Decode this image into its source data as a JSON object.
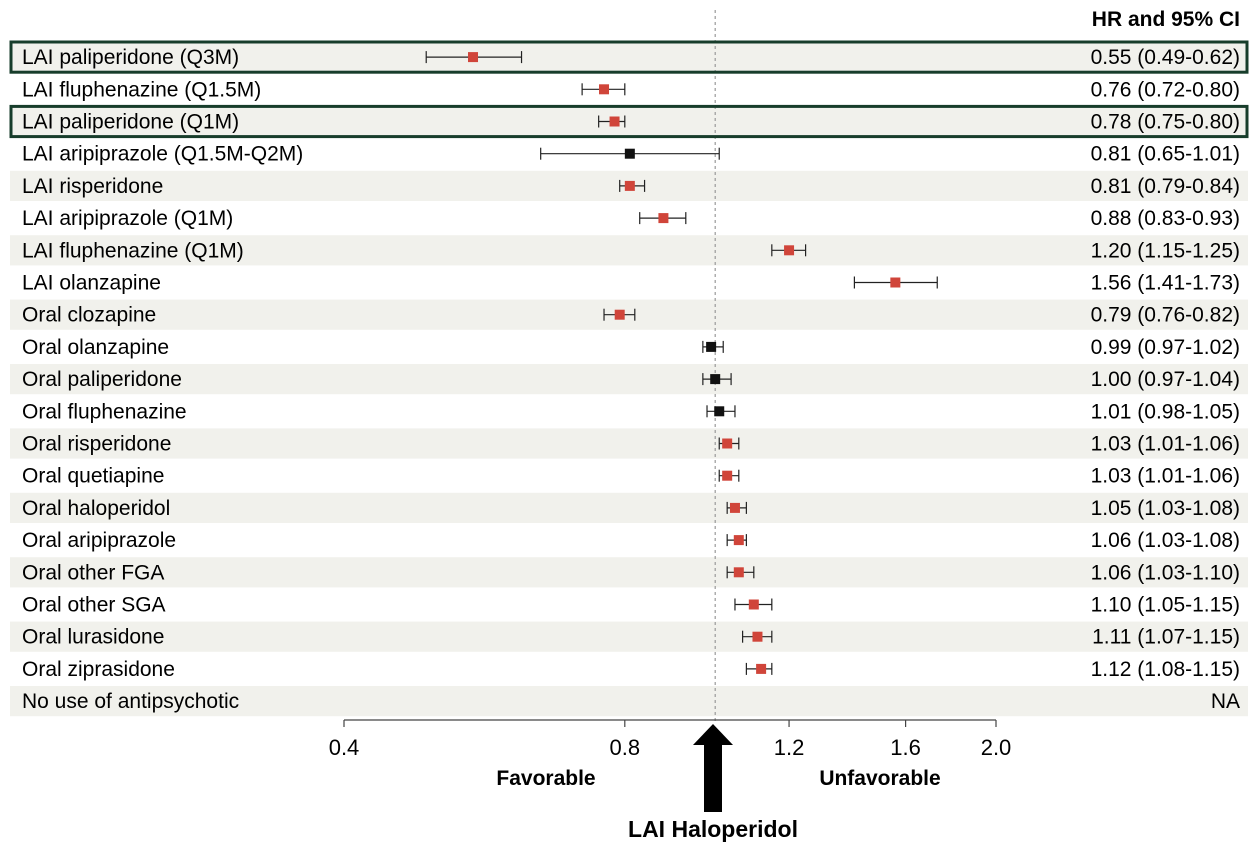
{
  "chart_data": {
    "type": "forest",
    "header": "HR and 95% CI",
    "x_scale": "log",
    "xlim": [
      0.4,
      2.0
    ],
    "ticks": [
      {
        "value": 0.4,
        "label": "0.4"
      },
      {
        "value": 0.8,
        "label": "0.8"
      },
      {
        "value": 1.2,
        "label": "1.2"
      },
      {
        "value": 1.6,
        "label": "1.6"
      },
      {
        "value": 2.0,
        "label": "2.0"
      }
    ],
    "reference_line": 1.0,
    "favorable_label": "Favorable",
    "unfavorable_label": "Unfavorable",
    "reference_label": "LAI Haloperidol",
    "colors": {
      "significant": "#d0453a",
      "nonsignificant": "#111111",
      "highlight_border": "#173d2b",
      "stripe": "#f1f1ec"
    },
    "rows": [
      {
        "label": "LAI paliperidone (Q3M)",
        "hr": 0.55,
        "lo": 0.49,
        "hi": 0.62,
        "ci_text": "0.55 (0.49-0.62)",
        "significant": true,
        "highlight": true
      },
      {
        "label": "LAI fluphenazine (Q1.5M)",
        "hr": 0.76,
        "lo": 0.72,
        "hi": 0.8,
        "ci_text": "0.76 (0.72-0.80)",
        "significant": true,
        "highlight": false
      },
      {
        "label": "LAI paliperidone (Q1M)",
        "hr": 0.78,
        "lo": 0.75,
        "hi": 0.8,
        "ci_text": "0.78 (0.75-0.80)",
        "significant": true,
        "highlight": true
      },
      {
        "label": "LAI aripiprazole (Q1.5M-Q2M)",
        "hr": 0.81,
        "lo": 0.65,
        "hi": 1.01,
        "ci_text": "0.81 (0.65-1.01)",
        "significant": false,
        "highlight": false
      },
      {
        "label": "LAI risperidone",
        "hr": 0.81,
        "lo": 0.79,
        "hi": 0.84,
        "ci_text": "0.81 (0.79-0.84)",
        "significant": true,
        "highlight": false
      },
      {
        "label": "LAI aripiprazole (Q1M)",
        "hr": 0.88,
        "lo": 0.83,
        "hi": 0.93,
        "ci_text": "0.88 (0.83-0.93)",
        "significant": true,
        "highlight": false
      },
      {
        "label": "LAI fluphenazine (Q1M)",
        "hr": 1.2,
        "lo": 1.15,
        "hi": 1.25,
        "ci_text": "1.20 (1.15-1.25)",
        "significant": true,
        "highlight": false
      },
      {
        "label": "LAI olanzapine",
        "hr": 1.56,
        "lo": 1.41,
        "hi": 1.73,
        "ci_text": "1.56 (1.41-1.73)",
        "significant": true,
        "highlight": false
      },
      {
        "label": "Oral clozapine",
        "hr": 0.79,
        "lo": 0.76,
        "hi": 0.82,
        "ci_text": "0.79 (0.76-0.82)",
        "significant": true,
        "highlight": false
      },
      {
        "label": "Oral olanzapine",
        "hr": 0.99,
        "lo": 0.97,
        "hi": 1.02,
        "ci_text": "0.99 (0.97-1.02)",
        "significant": false,
        "highlight": false
      },
      {
        "label": "Oral paliperidone",
        "hr": 1.0,
        "lo": 0.97,
        "hi": 1.04,
        "ci_text": "1.00 (0.97-1.04)",
        "significant": false,
        "highlight": false
      },
      {
        "label": "Oral fluphenazine",
        "hr": 1.01,
        "lo": 0.98,
        "hi": 1.05,
        "ci_text": "1.01 (0.98-1.05)",
        "significant": false,
        "highlight": false
      },
      {
        "label": "Oral risperidone",
        "hr": 1.03,
        "lo": 1.01,
        "hi": 1.06,
        "ci_text": "1.03 (1.01-1.06)",
        "significant": true,
        "highlight": false
      },
      {
        "label": "Oral quetiapine",
        "hr": 1.03,
        "lo": 1.01,
        "hi": 1.06,
        "ci_text": "1.03 (1.01-1.06)",
        "significant": true,
        "highlight": false
      },
      {
        "label": "Oral haloperidol",
        "hr": 1.05,
        "lo": 1.03,
        "hi": 1.08,
        "ci_text": "1.05 (1.03-1.08)",
        "significant": true,
        "highlight": false
      },
      {
        "label": "Oral aripiprazole",
        "hr": 1.06,
        "lo": 1.03,
        "hi": 1.08,
        "ci_text": "1.06 (1.03-1.08)",
        "significant": true,
        "highlight": false
      },
      {
        "label": "Oral other FGA",
        "hr": 1.06,
        "lo": 1.03,
        "hi": 1.1,
        "ci_text": "1.06 (1.03-1.10)",
        "significant": true,
        "highlight": false
      },
      {
        "label": "Oral other SGA",
        "hr": 1.1,
        "lo": 1.05,
        "hi": 1.15,
        "ci_text": "1.10 (1.05-1.15)",
        "significant": true,
        "highlight": false
      },
      {
        "label": "Oral lurasidone",
        "hr": 1.11,
        "lo": 1.07,
        "hi": 1.15,
        "ci_text": "1.11 (1.07-1.15)",
        "significant": true,
        "highlight": false
      },
      {
        "label": "Oral ziprasidone",
        "hr": 1.12,
        "lo": 1.08,
        "hi": 1.15,
        "ci_text": "1.12 (1.08-1.15)",
        "significant": true,
        "highlight": false
      },
      {
        "label": "No use of antipsychotic",
        "hr": null,
        "lo": null,
        "hi": null,
        "ci_text": "NA",
        "significant": false,
        "highlight": false
      }
    ]
  }
}
